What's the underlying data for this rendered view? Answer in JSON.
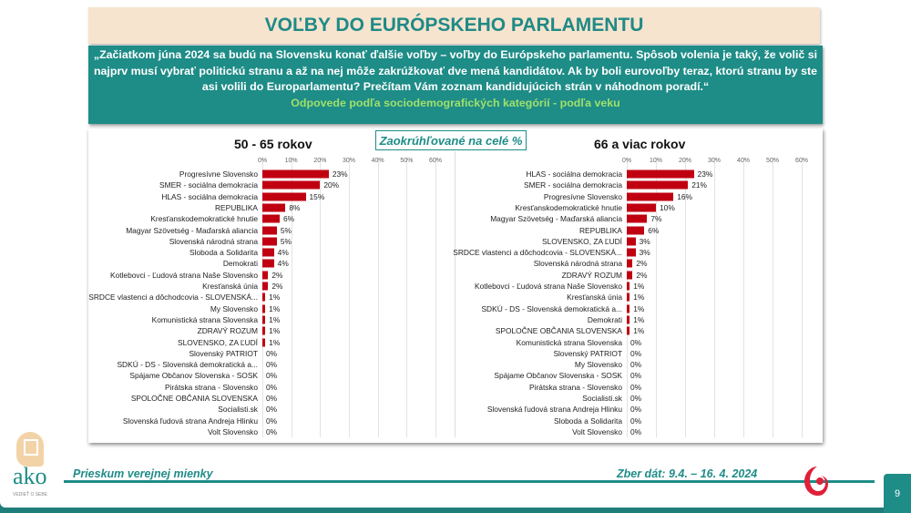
{
  "title": "VOĽBY DO EURÓPSKEHO PARLAMENTU",
  "quote": "„Začiatkom júna 2024 sa budú na Slovensku konať ďalšie voľby – voľby do Európskeho parlamentu. Spôsob volenia je taký, že volič si najprv musí vybrať politickú stranu a až na nej môže zakrúžkovať dve mená kandidátov. Ak by boli eurovoľby teraz, ktorú stranu by ste asi volili do Europarlamentu? Prečítam Vám zoznam kandidujúcich strán v náhodnom poradí.“",
  "subtitle": "Odpovede podľa sociodemografických kategórií - podľa veku",
  "badge": "Zaokrúhľované na celé %",
  "footer": {
    "left": "Prieskum verejnej mienky",
    "right": "Zber dát: 9.4. – 16. 4. 2024",
    "page": "9",
    "logo_text": "ako",
    "logo_tagline": "VEDIEŤ O SEBE"
  },
  "colors": {
    "bar": "#c00011",
    "teal": "#1e8c87"
  },
  "chart_data": [
    {
      "type": "bar",
      "orientation": "horizontal",
      "title": "50 - 65 rokov",
      "xlim": [
        0,
        60
      ],
      "ticks": [
        "0%",
        "10%",
        "20%",
        "30%",
        "40%",
        "50%",
        "60%"
      ],
      "categories": [
        "Progresívne Slovensko",
        "SMER - sociálna demokracia",
        "HLAS - sociálna demokracia",
        "REPUBLIKA",
        "Kresťanskodemokratické hnutie",
        "Magyar Szövetség - Maďarská aliancia",
        "Slovenská národná strana",
        "Sloboda a Solidarita",
        "Demokrati",
        "Kotlebovci - Ľudová strana Naše Slovensko",
        "Kresťanská únia",
        "SRDCE vlastenci a dôchodcovia - SLOVENSKÁ...",
        "My Slovensko",
        "Komunistická strana Slovenska",
        "ZDRAVÝ ROZUM",
        "SLOVENSKO, ZA ĽUDÍ",
        "Slovenský PATRIOT",
        "SDKÚ - DS - Slovenská demokratická a...",
        "Spájame Občanov Slovenska - SOSK",
        "Pirátska strana - Slovensko",
        "SPOLOČNE OBČANIA SLOVENSKA",
        "Socialisti.sk",
        "Slovenská ľudová strana Andreja Hlinku",
        "Volt Slovensko"
      ],
      "values": [
        23,
        20,
        15,
        8,
        6,
        5,
        5,
        4,
        4,
        2,
        2,
        1,
        1,
        1,
        1,
        1,
        0,
        0,
        0,
        0,
        0,
        0,
        0,
        0
      ]
    },
    {
      "type": "bar",
      "orientation": "horizontal",
      "title": "66 a viac rokov",
      "xlim": [
        0,
        60
      ],
      "ticks": [
        "0%",
        "10%",
        "20%",
        "30%",
        "40%",
        "50%",
        "60%"
      ],
      "categories": [
        "HLAS - sociálna demokracia",
        "SMER - sociálna demokracia",
        "Progresívne Slovensko",
        "Kresťanskodemokratické hnutie",
        "Magyar Szövetség - Maďarská aliancia",
        "REPUBLIKA",
        "SLOVENSKO, ZA ĽUDÍ",
        "SRDCE vlastenci a dôchodcovia - SLOVENSKÁ...",
        "Slovenská národná strana",
        "ZDRAVÝ ROZUM",
        "Kotlebovci - Ľudová strana Naše Slovensko",
        "Kresťanská únia",
        "SDKÚ - DS - Slovenská demokratická a...",
        "Demokrati",
        "SPOLOČNE OBČANIA SLOVENSKA",
        "Komunistická strana Slovenska",
        "Slovenský PATRIOT",
        "My Slovensko",
        "Spájame Občanov Slovenska - SOSK",
        "Pirátska strana - Slovensko",
        "Socialisti.sk",
        "Slovenská ľudová strana Andreja Hlinku",
        "Sloboda a Solidarita",
        "Volt Slovensko"
      ],
      "values": [
        23,
        21,
        16,
        10,
        7,
        6,
        3,
        3,
        2,
        2,
        1,
        1,
        1,
        1,
        1,
        0,
        0,
        0,
        0,
        0,
        0,
        0,
        0,
        0
      ]
    }
  ]
}
